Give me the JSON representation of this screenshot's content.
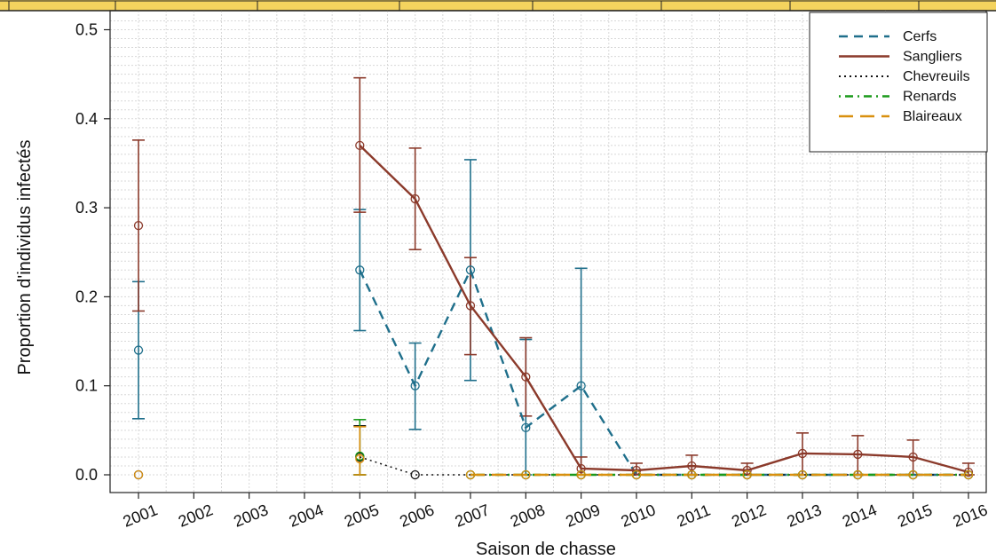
{
  "chart_data": {
    "type": "line",
    "title": "",
    "xlabel": "Saison de chasse",
    "ylabel": "Proportion d'individus infectés",
    "categories": [
      "2001",
      "2002",
      "2003",
      "2004",
      "2005",
      "2006",
      "2007",
      "2008",
      "2009",
      "2010",
      "2011",
      "2012",
      "2013",
      "2014",
      "2015",
      "2016"
    ],
    "y_ticks": [
      "0.0",
      "0.1",
      "0.2",
      "0.3",
      "0.4",
      "0.5"
    ],
    "ylim": [
      0,
      0.5
    ],
    "grid": "dotted",
    "legend_position": "top-right",
    "series": [
      {
        "name": "Cerfs",
        "color": "#1f6f8b",
        "line_style": "dashed",
        "line_from": "2005",
        "points": [
          {
            "x": "2001",
            "y": 0.14,
            "lo": 0.063,
            "hi": 0.217
          },
          {
            "x": "2005",
            "y": 0.23,
            "lo": 0.162,
            "hi": 0.298
          },
          {
            "x": "2006",
            "y": 0.1,
            "lo": 0.051,
            "hi": 0.148
          },
          {
            "x": "2007",
            "y": 0.23,
            "lo": 0.106,
            "hi": 0.354
          },
          {
            "x": "2008",
            "y": 0.053,
            "lo": 0.0,
            "hi": 0.152
          },
          {
            "x": "2009",
            "y": 0.1,
            "lo": 0.0,
            "hi": 0.232
          },
          {
            "x": "2010",
            "y": 0.0
          },
          {
            "x": "2011",
            "y": 0.0
          },
          {
            "x": "2012",
            "y": 0.0
          },
          {
            "x": "2013",
            "y": 0.0
          },
          {
            "x": "2014",
            "y": 0.0
          },
          {
            "x": "2015",
            "y": 0.0
          },
          {
            "x": "2016",
            "y": 0.0
          }
        ]
      },
      {
        "name": "Sangliers",
        "color": "#8b3a2b",
        "line_style": "solid",
        "line_from": "2005",
        "points": [
          {
            "x": "2001",
            "y": 0.28,
            "lo": 0.184,
            "hi": 0.376
          },
          {
            "x": "2005",
            "y": 0.37,
            "lo": 0.295,
            "hi": 0.446
          },
          {
            "x": "2006",
            "y": 0.31,
            "lo": 0.253,
            "hi": 0.367
          },
          {
            "x": "2007",
            "y": 0.19,
            "lo": 0.135,
            "hi": 0.244
          },
          {
            "x": "2008",
            "y": 0.11,
            "lo": 0.066,
            "hi": 0.154
          },
          {
            "x": "2009",
            "y": 0.007,
            "lo": 0.0,
            "hi": 0.02
          },
          {
            "x": "2010",
            "y": 0.005,
            "lo": 0.0,
            "hi": 0.013
          },
          {
            "x": "2011",
            "y": 0.01,
            "lo": 0.0,
            "hi": 0.022
          },
          {
            "x": "2012",
            "y": 0.005,
            "lo": 0.0,
            "hi": 0.013
          },
          {
            "x": "2013",
            "y": 0.024,
            "lo": 0.0,
            "hi": 0.047
          },
          {
            "x": "2014",
            "y": 0.023,
            "lo": 0.0,
            "hi": 0.044
          },
          {
            "x": "2015",
            "y": 0.02,
            "lo": 0.0,
            "hi": 0.039
          },
          {
            "x": "2016",
            "y": 0.003,
            "lo": 0.0,
            "hi": 0.013
          }
        ]
      },
      {
        "name": "Chevreuils",
        "color": "#111111",
        "line_style": "dotted",
        "line_from": "2005",
        "points": [
          {
            "x": "2001",
            "y": 0.0
          },
          {
            "x": "2005",
            "y": 0.02,
            "lo": 0.0,
            "hi": 0.055
          },
          {
            "x": "2006",
            "y": 0.0
          },
          {
            "x": "2007",
            "y": 0.0
          },
          {
            "x": "2008",
            "y": 0.0
          },
          {
            "x": "2009",
            "y": 0.0
          },
          {
            "x": "2010",
            "y": 0.0
          },
          {
            "x": "2011",
            "y": 0.0
          },
          {
            "x": "2012",
            "y": 0.0
          },
          {
            "x": "2013",
            "y": 0.0
          },
          {
            "x": "2014",
            "y": 0.0
          },
          {
            "x": "2015",
            "y": 0.0
          },
          {
            "x": "2016",
            "y": 0.0
          }
        ]
      },
      {
        "name": "Renards",
        "color": "#1a9a1a",
        "line_style": "dotdash",
        "line_from": "2007",
        "points": [
          {
            "x": "2005",
            "y": 0.021,
            "lo": 0.0,
            "hi": 0.062
          },
          {
            "x": "2007",
            "y": 0.0
          },
          {
            "x": "2008",
            "y": 0.0
          },
          {
            "x": "2009",
            "y": 0.0
          },
          {
            "x": "2010",
            "y": 0.0
          },
          {
            "x": "2011",
            "y": 0.0
          },
          {
            "x": "2012",
            "y": 0.0
          },
          {
            "x": "2013",
            "y": 0.0
          },
          {
            "x": "2014",
            "y": 0.0
          },
          {
            "x": "2015",
            "y": 0.0
          },
          {
            "x": "2016",
            "y": 0.0
          }
        ]
      },
      {
        "name": "Blaireaux",
        "color": "#d9900f",
        "line_style": "longdash",
        "line_from": "2007",
        "points": [
          {
            "x": "2001",
            "y": 0.0
          },
          {
            "x": "2005",
            "y": 0.018,
            "lo": 0.0,
            "hi": 0.054
          },
          {
            "x": "2007",
            "y": 0.0
          },
          {
            "x": "2008",
            "y": 0.0
          },
          {
            "x": "2009",
            "y": 0.0
          },
          {
            "x": "2010",
            "y": 0.0
          },
          {
            "x": "2011",
            "y": 0.0
          },
          {
            "x": "2012",
            "y": 0.0
          },
          {
            "x": "2013",
            "y": 0.0
          },
          {
            "x": "2014",
            "y": 0.0
          },
          {
            "x": "2015",
            "y": 0.0
          },
          {
            "x": "2016",
            "y": 0.0
          }
        ]
      }
    ]
  }
}
